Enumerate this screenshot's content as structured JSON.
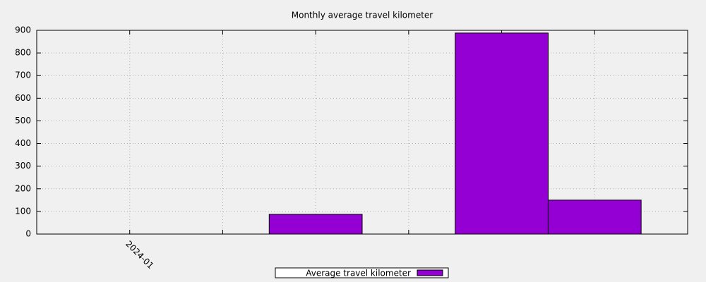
{
  "chart_data": {
    "type": "bar",
    "title": "Monthly average travel kilometer",
    "categories": [
      "2024-01",
      null,
      null,
      null,
      null,
      null
    ],
    "series": [
      {
        "name": "Average travel kilometer",
        "color": "#9400d3",
        "values": [
          null,
          null,
          87,
          null,
          888,
          150
        ]
      }
    ],
    "ylim": [
      0,
      900
    ],
    "yticks": [
      0,
      100,
      200,
      300,
      400,
      500,
      600,
      700,
      800,
      900
    ],
    "grid": true,
    "legend": "bottom"
  }
}
